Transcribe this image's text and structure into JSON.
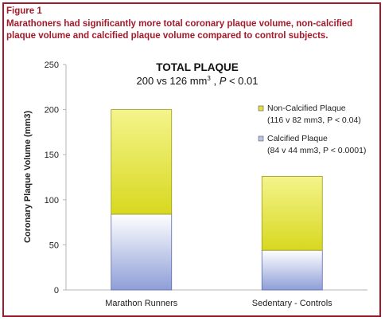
{
  "figure": {
    "label": "Figure 1",
    "caption": "Marathoners had significantly more total coronary plaque volume, non-calcified plaque volume and calcified plaque volume compared to control subjects."
  },
  "chart_data": {
    "type": "bar",
    "stacked": true,
    "title": "TOTAL PLAQUE",
    "subtitle": {
      "prefix": "200 vs 126 mm",
      "superscript": "3",
      "suffix": " , ",
      "p_italic": "P",
      "p_rest": " < 0.01"
    },
    "ylabel": "Coronary Plaque Volume (mm3)",
    "xlabel": "",
    "ylim": [
      0,
      250
    ],
    "yticks": [
      "0",
      "50",
      "100",
      "150",
      "200",
      "250"
    ],
    "categories": [
      "Marathon Runners",
      "Sedentary - Controls"
    ],
    "series": [
      {
        "name": "Calcified Plaque",
        "legend_note": "(84 v 44 mm3, P < 0.0001)",
        "values": [
          84,
          44
        ],
        "color": "#b8c4ea"
      },
      {
        "name": "Non-Calcified Plaque",
        "legend_note": "(116 v 82 mm3, P < 0.04)",
        "values": [
          116,
          82
        ],
        "color": "#e2e23a"
      }
    ],
    "legend_order": [
      1,
      0
    ],
    "legend_position": "right",
    "grid": false
  }
}
